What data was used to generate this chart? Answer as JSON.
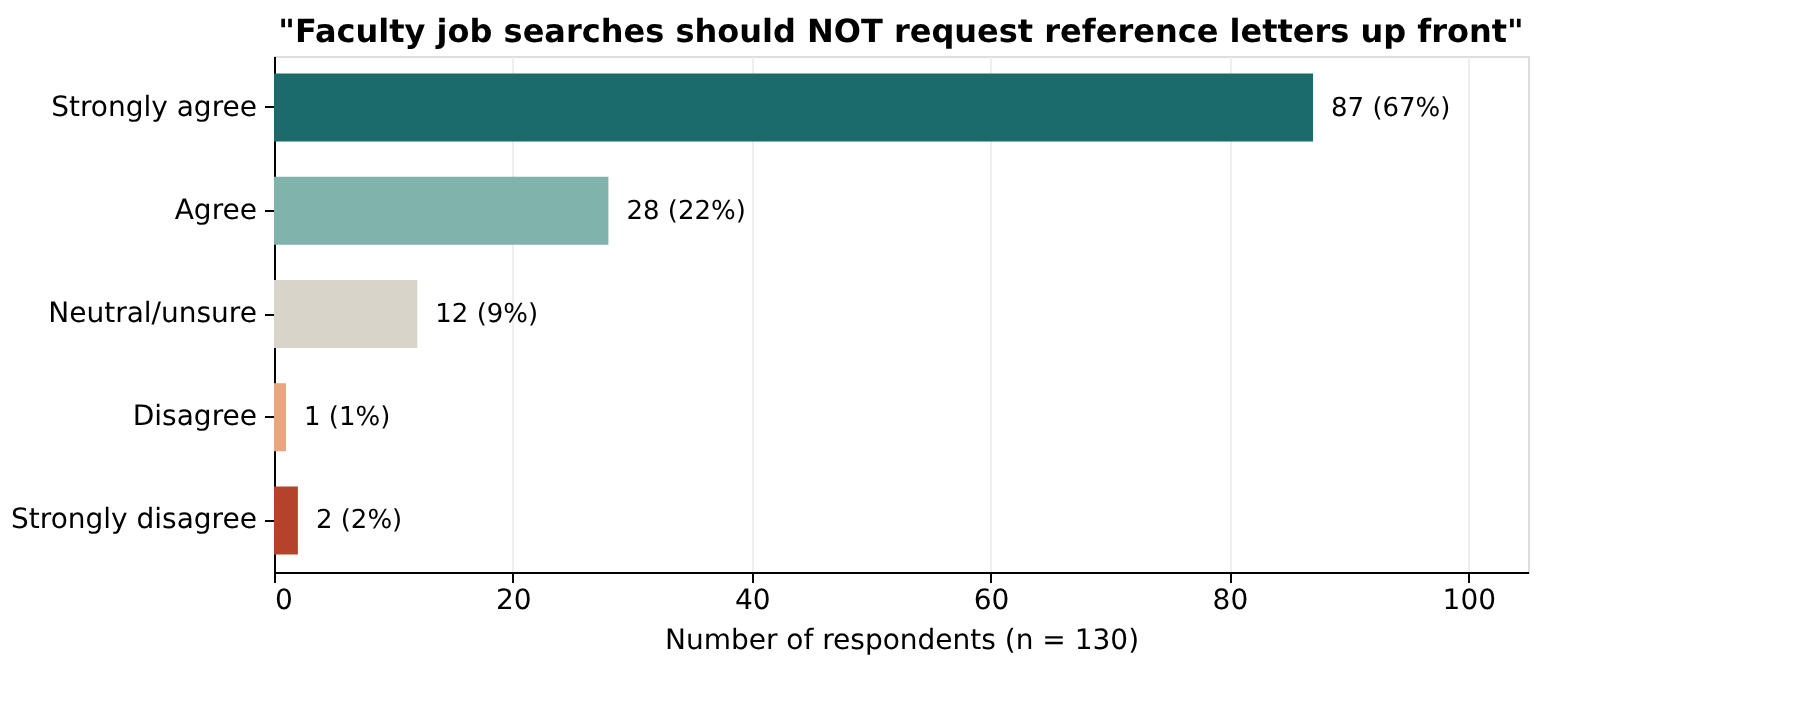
{
  "chart_data": {
    "type": "bar",
    "orientation": "horizontal",
    "title": "\"Faculty job searches should NOT request reference letters up front\"",
    "categories": [
      "Strongly agree",
      "Agree",
      "Neutral/unsure",
      "Disagree",
      "Strongly disagree"
    ],
    "values": [
      87,
      28,
      12,
      1,
      2
    ],
    "colors": [
      "#1b6b6b",
      "#7fb3ab",
      "#d8d4c9",
      "#e9a57e",
      "#b3432b"
    ],
    "value_labels": [
      "87  (67%)",
      "28  (22%)",
      "12  (9%)",
      "1  (1%)",
      "2  (2%)"
    ],
    "xlabel": "Number of respondents (n = 130)",
    "xlim": [
      0,
      105
    ],
    "xticks": [
      0,
      20,
      40,
      60,
      80,
      100
    ],
    "grid": "x",
    "legend": false
  }
}
